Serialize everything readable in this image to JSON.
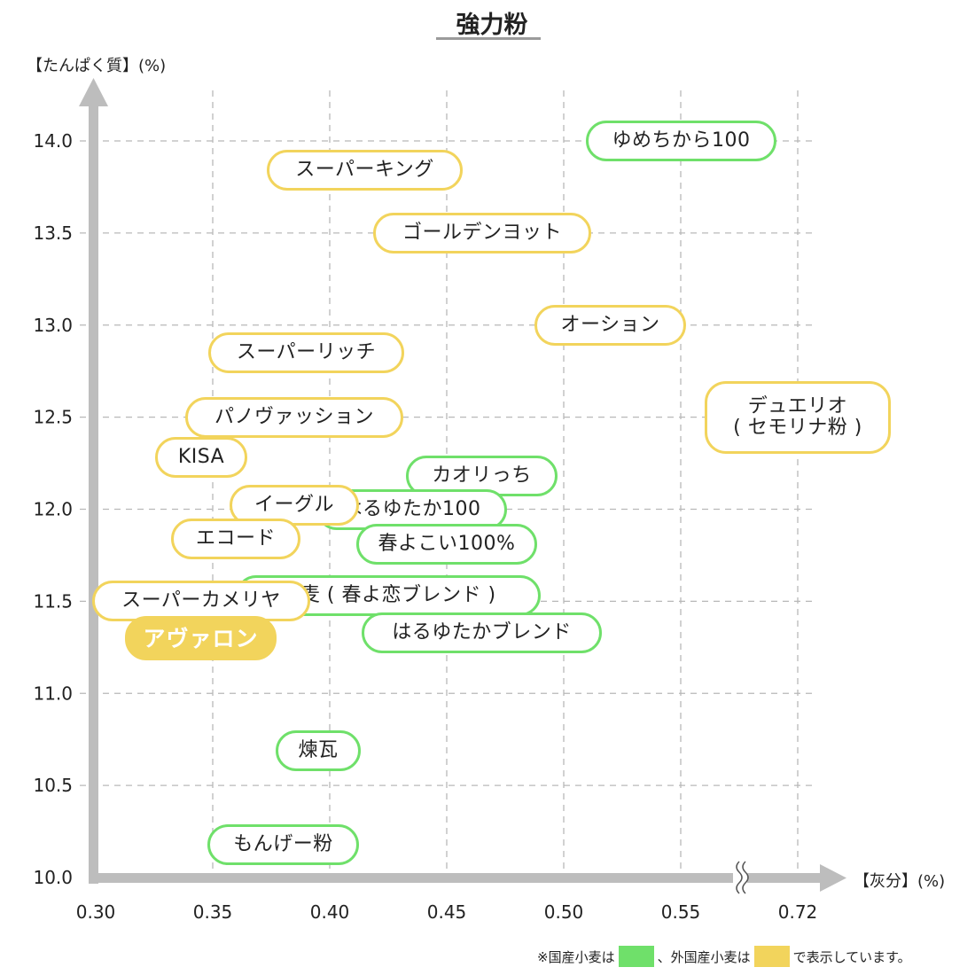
{
  "title": "強力粉",
  "colors": {
    "domestic": "#6fe06a",
    "foreign": "#f2d45c",
    "axis": "#bdbdbd",
    "grid": "#b8b8b8"
  },
  "chart_data": {
    "type": "scatter",
    "title": "強力粉",
    "xlabel": "【灰分】(%)",
    "ylabel": "【たんぱく質】(%)",
    "x_ticks": [
      "0.30",
      "0.35",
      "0.40",
      "0.45",
      "0.50",
      "0.55",
      "0.72"
    ],
    "y_ticks": [
      "10.0",
      "10.5",
      "11.0",
      "11.5",
      "12.0",
      "12.5",
      "13.0",
      "13.5",
      "14.0"
    ],
    "x_axis_break": "between 0.55 and 0.72",
    "grid": true,
    "series": [
      {
        "name": "国産小麦",
        "color": "#6fe06a",
        "points": [
          {
            "label": "ゆめちから100",
            "x": 0.55,
            "y": 14.0
          },
          {
            "label": "カオリっち",
            "x": 0.465,
            "y": 12.18
          },
          {
            "label": "はるゆたか100",
            "x": 0.435,
            "y": 12.0
          },
          {
            "label": "春よこい100%",
            "x": 0.45,
            "y": 11.81
          },
          {
            "label": "香麦 ( 春よ恋ブレンド )",
            "x": 0.425,
            "y": 11.53
          },
          {
            "label": "はるゆたかブレンド",
            "x": 0.465,
            "y": 11.33
          },
          {
            "label": "煉瓦",
            "x": 0.395,
            "y": 10.69
          },
          {
            "label": "もんげー粉",
            "x": 0.38,
            "y": 10.18
          }
        ]
      },
      {
        "name": "外国産小麦",
        "color": "#f2d45c",
        "points": [
          {
            "label": "スーパーキング",
            "x": 0.415,
            "y": 13.84
          },
          {
            "label": "ゴールデンヨット",
            "x": 0.465,
            "y": 13.5
          },
          {
            "label": "オーション",
            "x": 0.52,
            "y": 13.0
          },
          {
            "label": "スーパーリッチ",
            "x": 0.39,
            "y": 12.85
          },
          {
            "label": "デュエリオ ( セモリナ粉 )",
            "x": 0.72,
            "y": 12.5
          },
          {
            "label": "パノヴァッション",
            "x": 0.385,
            "y": 12.5
          },
          {
            "label": "KISA",
            "x": 0.345,
            "y": 12.28
          },
          {
            "label": "イーグル",
            "x": 0.385,
            "y": 12.02
          },
          {
            "label": "エコード",
            "x": 0.36,
            "y": 11.84
          },
          {
            "label": "スーパーカメリヤ",
            "x": 0.345,
            "y": 11.5
          },
          {
            "label": "アヴァロン",
            "x": 0.345,
            "y": 11.3,
            "highlight": true
          }
        ]
      }
    ]
  },
  "legend_note": {
    "prefix": "※国産小麦は",
    "middle": "、外国産小麦は",
    "suffix": "で表示しています。"
  }
}
